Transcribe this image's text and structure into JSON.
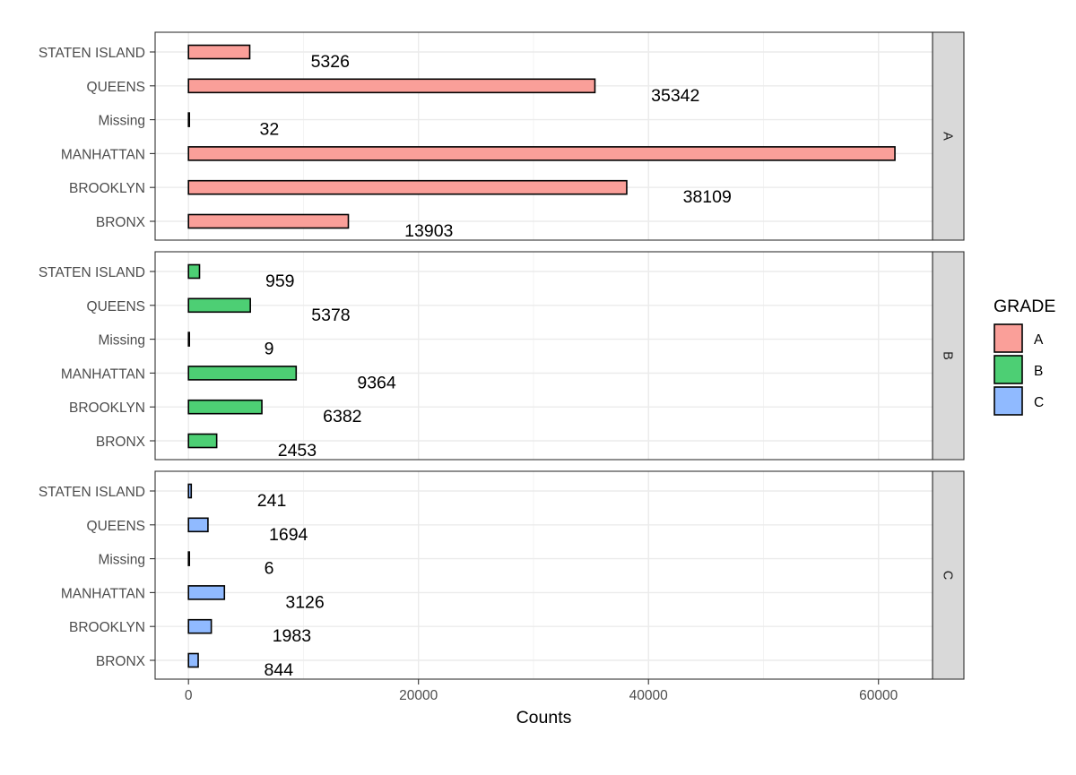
{
  "chart_data": {
    "type": "bar",
    "orientation": "horizontal",
    "faceted_by": "GRADE",
    "xlabel": "Counts",
    "ylabel": "",
    "xlim": [
      -2900,
      64700
    ],
    "x_ticks": [
      0,
      20000,
      40000,
      60000
    ],
    "x_tick_labels": [
      "0",
      "20000",
      "40000",
      "60000"
    ],
    "categories": [
      "STATEN ISLAND",
      "QUEENS",
      "Missing",
      "MANHATTAN",
      "BROOKLYN",
      "BRONX"
    ],
    "grid": true,
    "legend": {
      "title": "GRADE",
      "placement": "right",
      "entries": [
        {
          "label": "A",
          "color": "#F8766D"
        },
        {
          "label": "B",
          "color": "#00BA38"
        },
        {
          "label": "C",
          "color": "#619CFF"
        }
      ]
    },
    "series": [
      {
        "name": "A",
        "strip_label": "A",
        "color": "#F8766D",
        "values": [
          5326,
          35342,
          32,
          61429,
          38109,
          13903
        ],
        "labels": [
          "5326",
          "35342",
          "32",
          "",
          "38109",
          "13903"
        ]
      },
      {
        "name": "B",
        "strip_label": "B",
        "color": "#00BA38",
        "values": [
          959,
          5378,
          9,
          9364,
          6382,
          2453
        ],
        "labels": [
          "959",
          "5378",
          "9",
          "9364",
          "6382",
          "2453"
        ]
      },
      {
        "name": "C",
        "strip_label": "C",
        "color": "#619CFF",
        "values": [
          241,
          1694,
          6,
          3126,
          1983,
          844
        ],
        "labels": [
          "241",
          "1694",
          "6",
          "3126",
          "1983",
          "844"
        ]
      }
    ]
  }
}
